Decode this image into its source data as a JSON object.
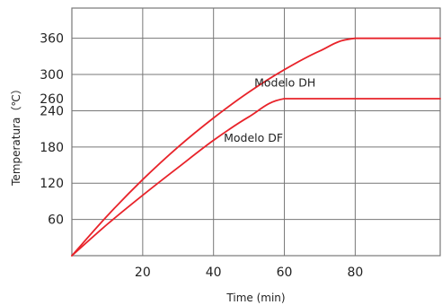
{
  "chart_data": {
    "type": "line",
    "title": "",
    "xlabel": "Time (min)",
    "ylabel": "Temperatura（℃）",
    "xlim": [
      0,
      104
    ],
    "ylim": [
      0,
      410
    ],
    "x_ticks": [
      20,
      40,
      60,
      80
    ],
    "x_tick_labels": [
      "20",
      "40",
      "60",
      "80"
    ],
    "y_ticks": [
      60,
      120,
      180,
      240,
      260,
      300,
      360
    ],
    "y_tick_labels": [
      "60",
      "120",
      "180",
      "240",
      "260",
      "300",
      "360"
    ],
    "x_gridlines": [
      20,
      40,
      60,
      80
    ],
    "y_gridlines": [
      60,
      120,
      180,
      240,
      300,
      360
    ],
    "grid": true,
    "legend": "none",
    "colors": {
      "series": "#e8232a",
      "grid": "#777777",
      "frame": "#777777",
      "text": "#222222"
    },
    "series": [
      {
        "name": "Modelo DH",
        "x": [
          0,
          10,
          20,
          30,
          40,
          50,
          60,
          70,
          80,
          104
        ],
        "y": [
          0,
          66,
          126,
          180,
          228,
          271,
          308,
          339,
          360,
          360
        ]
      },
      {
        "name": "Modelo DF",
        "x": [
          0,
          10,
          20,
          30,
          40,
          50,
          60,
          80,
          104
        ],
        "y": [
          0,
          52,
          100,
          146,
          191,
          230,
          260,
          260,
          260
        ]
      }
    ]
  }
}
